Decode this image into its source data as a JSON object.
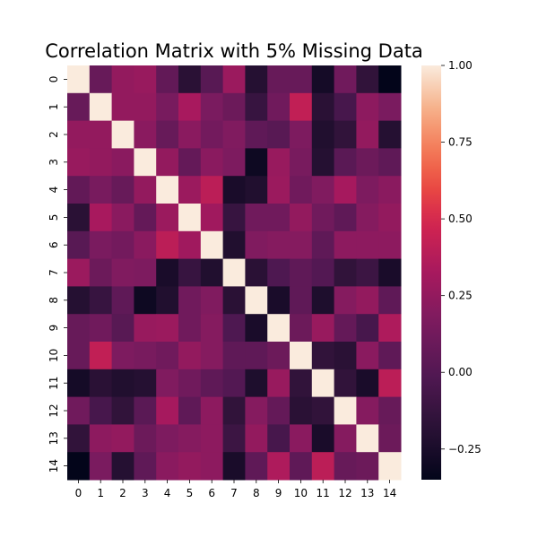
{
  "chart_data": {
    "type": "heatmap",
    "title": "Correlation Matrix with 5% Missing Data",
    "xlabel": "",
    "ylabel": "",
    "x_labels": [
      "0",
      "1",
      "2",
      "3",
      "4",
      "5",
      "6",
      "7",
      "8",
      "9",
      "10",
      "11",
      "12",
      "13",
      "14"
    ],
    "y_labels": [
      "0",
      "1",
      "2",
      "3",
      "4",
      "5",
      "6",
      "7",
      "8",
      "9",
      "10",
      "11",
      "12",
      "13",
      "14"
    ],
    "colormap": "rocket",
    "vmin": -0.35,
    "vmax": 1.0,
    "colorbar_ticks": [
      -0.25,
      0.0,
      0.25,
      0.5,
      0.75,
      1.0
    ],
    "colorbar_tick_labels": [
      "−0.25",
      "0.00",
      "0.25",
      "0.50",
      "0.75",
      "1.00"
    ],
    "matrix": [
      [
        1.0,
        0.08,
        0.25,
        0.27,
        0.06,
        -0.18,
        0.02,
        0.28,
        -0.2,
        0.08,
        0.08,
        -0.27,
        0.12,
        -0.15,
        -0.35
      ],
      [
        0.08,
        1.0,
        0.25,
        0.25,
        0.15,
        0.33,
        0.16,
        0.1,
        -0.12,
        0.12,
        0.42,
        -0.18,
        -0.05,
        0.23,
        0.16
      ],
      [
        0.25,
        0.25,
        1.0,
        0.22,
        0.08,
        0.22,
        0.13,
        0.18,
        0.05,
        0.02,
        0.17,
        -0.22,
        -0.15,
        0.25,
        -0.2
      ],
      [
        0.27,
        0.25,
        0.22,
        1.0,
        0.25,
        0.07,
        0.22,
        0.17,
        -0.3,
        0.27,
        0.15,
        -0.2,
        0.03,
        0.1,
        0.05
      ],
      [
        0.06,
        0.15,
        0.08,
        0.25,
        1.0,
        0.28,
        0.4,
        -0.25,
        -0.22,
        0.28,
        0.12,
        0.18,
        0.32,
        0.17,
        0.22
      ],
      [
        -0.18,
        0.33,
        0.22,
        0.07,
        0.28,
        1.0,
        0.3,
        -0.12,
        0.12,
        0.12,
        0.25,
        0.12,
        0.05,
        0.2,
        0.25
      ],
      [
        0.02,
        0.16,
        0.13,
        0.22,
        0.4,
        0.3,
        1.0,
        -0.22,
        0.18,
        0.2,
        0.2,
        0.05,
        0.23,
        0.23,
        0.23
      ],
      [
        0.28,
        0.1,
        0.18,
        0.17,
        -0.25,
        -0.12,
        -0.22,
        1.0,
        -0.18,
        -0.02,
        0.05,
        0.0,
        -0.15,
        -0.1,
        -0.25
      ],
      [
        -0.2,
        -0.12,
        0.05,
        -0.3,
        -0.22,
        0.12,
        0.18,
        -0.18,
        1.0,
        -0.25,
        0.05,
        -0.23,
        0.2,
        0.25,
        0.05
      ],
      [
        0.08,
        0.12,
        0.02,
        0.27,
        0.28,
        0.12,
        0.2,
        -0.02,
        -0.25,
        1.0,
        0.1,
        0.27,
        0.07,
        -0.05,
        0.35
      ],
      [
        0.08,
        0.42,
        0.17,
        0.15,
        0.12,
        0.25,
        0.2,
        0.05,
        0.05,
        0.1,
        1.0,
        -0.15,
        -0.18,
        0.22,
        0.05
      ],
      [
        -0.27,
        -0.18,
        -0.22,
        -0.2,
        0.18,
        0.12,
        0.05,
        0.0,
        -0.23,
        0.27,
        -0.15,
        1.0,
        -0.15,
        -0.25,
        0.4
      ],
      [
        0.12,
        -0.05,
        -0.15,
        0.03,
        0.32,
        0.05,
        0.23,
        -0.15,
        0.2,
        0.07,
        -0.18,
        -0.15,
        1.0,
        0.2,
        0.08
      ],
      [
        -0.15,
        0.23,
        0.25,
        0.1,
        0.17,
        0.2,
        0.23,
        -0.1,
        0.25,
        -0.05,
        0.22,
        -0.25,
        0.2,
        1.0,
        0.1
      ],
      [
        -0.35,
        0.16,
        -0.2,
        0.05,
        0.22,
        0.25,
        0.23,
        -0.25,
        0.05,
        0.35,
        0.05,
        0.4,
        0.08,
        0.1,
        1.0
      ]
    ]
  }
}
